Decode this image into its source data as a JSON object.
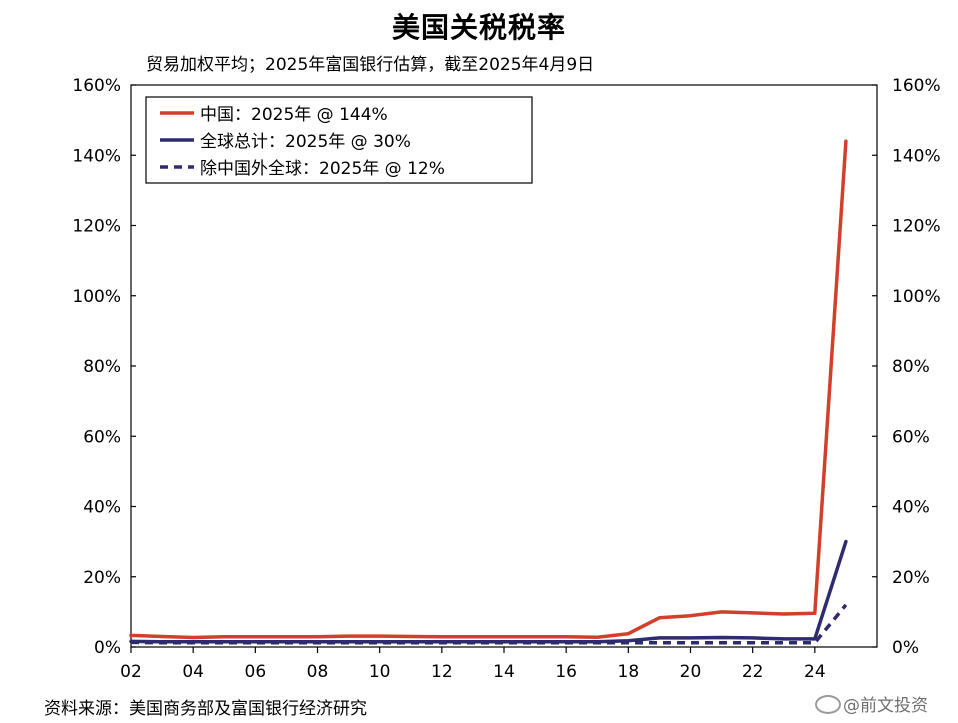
{
  "title": "美国关税税率",
  "subtitle": "贸易加权平均；2025年富国银行估算，截至2025年4月9日",
  "source": "资料来源：美国商务部及富国银行经济研究",
  "watermark": "@前文投资",
  "chart_data": {
    "type": "line",
    "x": [
      2002,
      2003,
      2004,
      2005,
      2006,
      2007,
      2008,
      2009,
      2010,
      2011,
      2012,
      2013,
      2014,
      2015,
      2016,
      2017,
      2018,
      2019,
      2020,
      2021,
      2022,
      2023,
      2024,
      2025
    ],
    "x_ticks": [
      2002,
      2004,
      2006,
      2008,
      2010,
      2012,
      2014,
      2016,
      2018,
      2020,
      2022,
      2024
    ],
    "x_tick_labels": [
      "02",
      "04",
      "06",
      "08",
      "10",
      "12",
      "14",
      "16",
      "18",
      "20",
      "22",
      "24"
    ],
    "ylim": [
      0,
      160
    ],
    "y_ticks": [
      0,
      20,
      40,
      60,
      80,
      100,
      120,
      140,
      160
    ],
    "y_tick_labels": [
      "0%",
      "20%",
      "40%",
      "60%",
      "80%",
      "100%",
      "120%",
      "140%",
      "160%"
    ],
    "grid": false,
    "legend_position": "top-left",
    "series": [
      {
        "name": "中国：2025年 @ 144%",
        "color": "#d0402b",
        "dash": "solid",
        "values": [
          3.3,
          3.0,
          2.7,
          2.9,
          2.9,
          2.9,
          2.9,
          3.1,
          3.1,
          3.0,
          2.9,
          2.9,
          2.9,
          2.9,
          2.9,
          2.8,
          3.8,
          8.3,
          8.9,
          10.0,
          9.7,
          9.4,
          9.6,
          144
        ]
      },
      {
        "name": "全球总计：2025年 @ 30%",
        "color": "#2e2b6e",
        "dash": "solid",
        "values": [
          1.6,
          1.5,
          1.5,
          1.5,
          1.5,
          1.5,
          1.5,
          1.5,
          1.5,
          1.5,
          1.5,
          1.5,
          1.5,
          1.5,
          1.5,
          1.5,
          1.8,
          2.6,
          2.6,
          2.7,
          2.6,
          2.3,
          2.3,
          30
        ]
      },
      {
        "name": "除中国外全球：2025年 @ 12%",
        "color": "#2e2b6e",
        "dash": "dashed",
        "values": [
          1.3,
          1.2,
          1.2,
          1.2,
          1.2,
          1.2,
          1.2,
          1.2,
          1.2,
          1.2,
          1.2,
          1.2,
          1.2,
          1.2,
          1.2,
          1.2,
          1.2,
          1.2,
          1.2,
          1.2,
          1.2,
          1.2,
          1.2,
          12
        ]
      }
    ]
  }
}
